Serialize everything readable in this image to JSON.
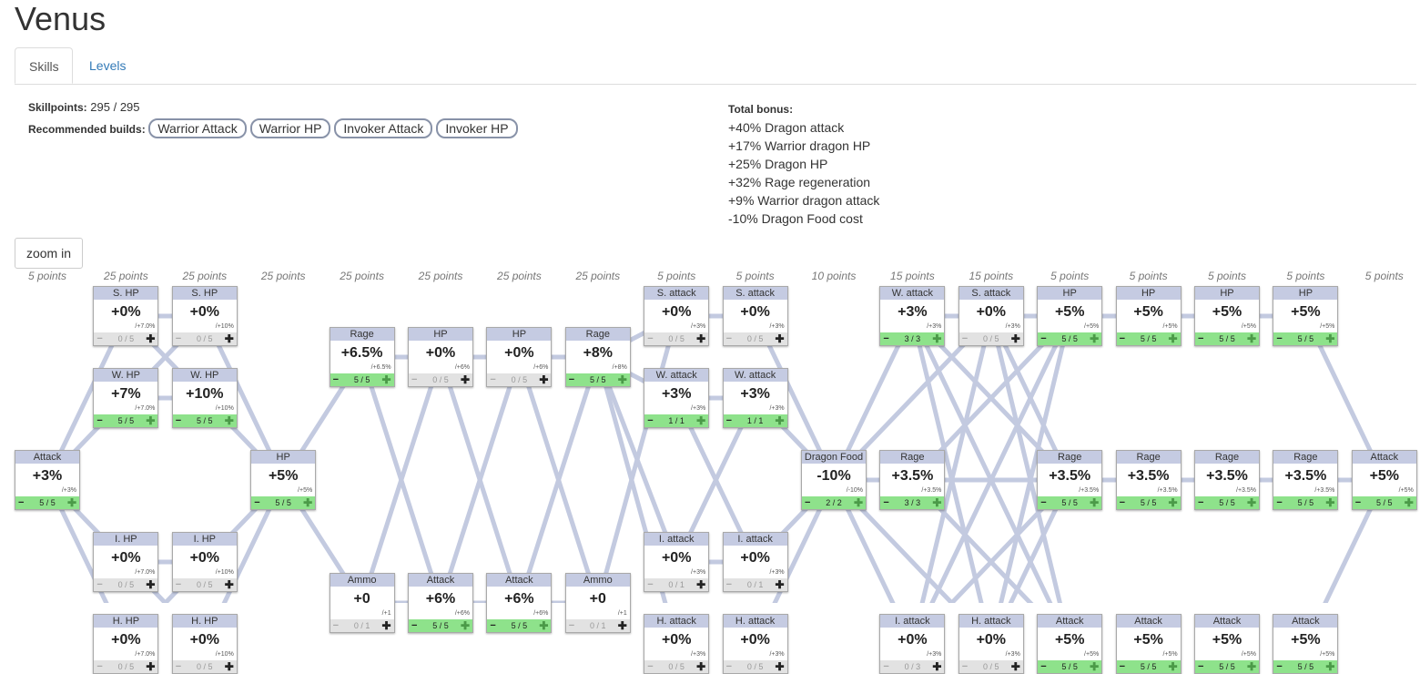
{
  "title": "Venus",
  "tabs": [
    {
      "label": "Skills"
    },
    {
      "label": "Levels"
    }
  ],
  "skillpoints": {
    "label": "Skillpoints:",
    "value": "295 / 295"
  },
  "builds": {
    "label": "Recommended builds:",
    "items": [
      "Warrior Attack",
      "Warrior HP",
      "Invoker Attack",
      "Invoker HP"
    ]
  },
  "total_bonus": {
    "label": "Total bonus:",
    "lines": [
      "+40% Dragon attack",
      "+17% Warrior dragon HP",
      "+25% Dragon HP",
      "+32% Rage regeneration",
      "+9% Warrior dragon attack",
      "-10% Dragon Food cost"
    ]
  },
  "zoom_label": "zoom in",
  "columns": [
    "5 points",
    "25 points",
    "25 points",
    "25 points",
    "25 points",
    "25 points",
    "25 points",
    "25 points",
    "5 points",
    "5 points",
    "10 points",
    "15 points",
    "15 points",
    "5 points",
    "5 points",
    "5 points",
    "5 points",
    "5 points"
  ],
  "nodes": [
    {
      "id": "c0r2",
      "col": 0,
      "row": 2,
      "name": "Attack",
      "value": "+3%",
      "step": "/+3%",
      "level": "5 / 5",
      "active": true
    },
    {
      "id": "c1r0",
      "col": 1,
      "row": 0,
      "name": "S. HP",
      "value": "+0%",
      "step": "/+7.0%",
      "level": "0 / 5",
      "active": false
    },
    {
      "id": "c1r1",
      "col": 1,
      "row": 1,
      "name": "W. HP",
      "value": "+7%",
      "step": "/+7.0%",
      "level": "5 / 5",
      "active": true
    },
    {
      "id": "c1r3",
      "col": 1,
      "row": 3,
      "name": "I. HP",
      "value": "+0%",
      "step": "/+7.0%",
      "level": "0 / 5",
      "active": false
    },
    {
      "id": "c1r4",
      "col": 1,
      "row": 4,
      "name": "H. HP",
      "value": "+0%",
      "step": "/+7.0%",
      "level": "0 / 5",
      "active": false
    },
    {
      "id": "c2r0",
      "col": 2,
      "row": 0,
      "name": "S. HP",
      "value": "+0%",
      "step": "/+10%",
      "level": "0 / 5",
      "active": false
    },
    {
      "id": "c2r1",
      "col": 2,
      "row": 1,
      "name": "W. HP",
      "value": "+10%",
      "step": "/+10%",
      "level": "5 / 5",
      "active": true
    },
    {
      "id": "c2r3",
      "col": 2,
      "row": 3,
      "name": "I. HP",
      "value": "+0%",
      "step": "/+10%",
      "level": "0 / 5",
      "active": false
    },
    {
      "id": "c2r4",
      "col": 2,
      "row": 4,
      "name": "H. HP",
      "value": "+0%",
      "step": "/+10%",
      "level": "0 / 5",
      "active": false
    },
    {
      "id": "c3r2",
      "col": 3,
      "row": 2,
      "name": "HP",
      "value": "+5%",
      "step": "/+5%",
      "level": "5 / 5",
      "active": true
    },
    {
      "id": "c4a",
      "col": 4,
      "row": 0.5,
      "name": "Rage",
      "value": "+6.5%",
      "step": "/+6.5%",
      "level": "5 / 5",
      "active": true
    },
    {
      "id": "c4b",
      "col": 4,
      "row": 3.5,
      "name": "Ammo",
      "value": "+0",
      "step": "/+1",
      "level": "0 / 1",
      "active": false
    },
    {
      "id": "c5a",
      "col": 5,
      "row": 0.5,
      "name": "HP",
      "value": "+0%",
      "step": "/+6%",
      "level": "0 / 5",
      "active": false
    },
    {
      "id": "c5b",
      "col": 5,
      "row": 3.5,
      "name": "Attack",
      "value": "+6%",
      "step": "/+6%",
      "level": "5 / 5",
      "active": true
    },
    {
      "id": "c6a",
      "col": 6,
      "row": 0.5,
      "name": "HP",
      "value": "+0%",
      "step": "/+6%",
      "level": "0 / 5",
      "active": false
    },
    {
      "id": "c6b",
      "col": 6,
      "row": 3.5,
      "name": "Attack",
      "value": "+6%",
      "step": "/+6%",
      "level": "5 / 5",
      "active": true
    },
    {
      "id": "c7a",
      "col": 7,
      "row": 0.5,
      "name": "Rage",
      "value": "+8%",
      "step": "/+8%",
      "level": "5 / 5",
      "active": true
    },
    {
      "id": "c7b",
      "col": 7,
      "row": 3.5,
      "name": "Ammo",
      "value": "+0",
      "step": "/+1",
      "level": "0 / 1",
      "active": false
    },
    {
      "id": "c8r0",
      "col": 8,
      "row": 0,
      "name": "S. attack",
      "value": "+0%",
      "step": "/+3%",
      "level": "0 / 5",
      "active": false
    },
    {
      "id": "c8r1",
      "col": 8,
      "row": 1,
      "name": "W. attack",
      "value": "+3%",
      "step": "/+3%",
      "level": "1 / 1",
      "active": true
    },
    {
      "id": "c8r3",
      "col": 8,
      "row": 3,
      "name": "I. attack",
      "value": "+0%",
      "step": "/+3%",
      "level": "0 / 1",
      "active": false
    },
    {
      "id": "c8r4",
      "col": 8,
      "row": 4,
      "name": "H. attack",
      "value": "+0%",
      "step": "/+3%",
      "level": "0 / 5",
      "active": false
    },
    {
      "id": "c9r0",
      "col": 9,
      "row": 0,
      "name": "S. attack",
      "value": "+0%",
      "step": "/+3%",
      "level": "0 / 5",
      "active": false
    },
    {
      "id": "c9r1",
      "col": 9,
      "row": 1,
      "name": "W. attack",
      "value": "+3%",
      "step": "/+3%",
      "level": "1 / 1",
      "active": true
    },
    {
      "id": "c9r3",
      "col": 9,
      "row": 3,
      "name": "I. attack",
      "value": "+0%",
      "step": "/+3%",
      "level": "0 / 1",
      "active": false
    },
    {
      "id": "c9r4",
      "col": 9,
      "row": 4,
      "name": "H. attack",
      "value": "+0%",
      "step": "/+3%",
      "level": "0 / 5",
      "active": false
    },
    {
      "id": "c10r2",
      "col": 10,
      "row": 2,
      "name": "Dragon Food",
      "value": "-10%",
      "step": "/-10%",
      "level": "2 / 2",
      "active": true
    },
    {
      "id": "c11r0",
      "col": 11,
      "row": 0,
      "name": "W. attack",
      "value": "+3%",
      "step": "/+3%",
      "level": "3 / 3",
      "active": true
    },
    {
      "id": "c11r2",
      "col": 11,
      "row": 2,
      "name": "Rage",
      "value": "+3.5%",
      "step": "/+3.5%",
      "level": "3 / 3",
      "active": true
    },
    {
      "id": "c11r4",
      "col": 11,
      "row": 4,
      "name": "I. attack",
      "value": "+0%",
      "step": "/+3%",
      "level": "0 / 3",
      "active": false
    },
    {
      "id": "c12r0",
      "col": 12,
      "row": 0,
      "name": "S. attack",
      "value": "+0%",
      "step": "/+3%",
      "level": "0 / 5",
      "active": false
    },
    {
      "id": "c12r4",
      "col": 12,
      "row": 4,
      "name": "H. attack",
      "value": "+0%",
      "step": "/+3%",
      "level": "0 / 5",
      "active": false
    },
    {
      "id": "c13r0",
      "col": 13,
      "row": 0,
      "name": "HP",
      "value": "+5%",
      "step": "/+5%",
      "level": "5 / 5",
      "active": true
    },
    {
      "id": "c13r2",
      "col": 13,
      "row": 2,
      "name": "Rage",
      "value": "+3.5%",
      "step": "/+3.5%",
      "level": "5 / 5",
      "active": true
    },
    {
      "id": "c13r4",
      "col": 13,
      "row": 4,
      "name": "Attack",
      "value": "+5%",
      "step": "/+5%",
      "level": "5 / 5",
      "active": true
    },
    {
      "id": "c14r0",
      "col": 14,
      "row": 0,
      "name": "HP",
      "value": "+5%",
      "step": "/+5%",
      "level": "5 / 5",
      "active": true
    },
    {
      "id": "c14r2",
      "col": 14,
      "row": 2,
      "name": "Rage",
      "value": "+3.5%",
      "step": "/+3.5%",
      "level": "5 / 5",
      "active": true
    },
    {
      "id": "c14r4",
      "col": 14,
      "row": 4,
      "name": "Attack",
      "value": "+5%",
      "step": "/+5%",
      "level": "5 / 5",
      "active": true
    },
    {
      "id": "c15r0",
      "col": 15,
      "row": 0,
      "name": "HP",
      "value": "+5%",
      "step": "/+5%",
      "level": "5 / 5",
      "active": true
    },
    {
      "id": "c15r2",
      "col": 15,
      "row": 2,
      "name": "Rage",
      "value": "+3.5%",
      "step": "/+3.5%",
      "level": "5 / 5",
      "active": true
    },
    {
      "id": "c15r4",
      "col": 15,
      "row": 4,
      "name": "Attack",
      "value": "+5%",
      "step": "/+5%",
      "level": "5 / 5",
      "active": true
    },
    {
      "id": "c16r0",
      "col": 16,
      "row": 0,
      "name": "HP",
      "value": "+5%",
      "step": "/+5%",
      "level": "5 / 5",
      "active": true
    },
    {
      "id": "c16r2",
      "col": 16,
      "row": 2,
      "name": "Rage",
      "value": "+3.5%",
      "step": "/+3.5%",
      "level": "5 / 5",
      "active": true
    },
    {
      "id": "c16r4",
      "col": 16,
      "row": 4,
      "name": "Attack",
      "value": "+5%",
      "step": "/+5%",
      "level": "5 / 5",
      "active": true
    },
    {
      "id": "c17r2",
      "col": 17,
      "row": 2,
      "name": "Attack",
      "value": "+5%",
      "step": "/+5%",
      "level": "5 / 5",
      "active": true
    }
  ],
  "edges": [
    [
      "c0r2",
      "c1r0"
    ],
    [
      "c0r2",
      "c1r1"
    ],
    [
      "c0r2",
      "c1r3"
    ],
    [
      "c0r2",
      "c1r4"
    ],
    [
      "c1r0",
      "c2r0"
    ],
    [
      "c1r1",
      "c2r1"
    ],
    [
      "c1r3",
      "c2r3"
    ],
    [
      "c1r4",
      "c2r4"
    ],
    [
      "c1r0",
      "c2r1"
    ],
    [
      "c1r1",
      "c2r0"
    ],
    [
      "c1r3",
      "c2r4"
    ],
    [
      "c1r4",
      "c2r3"
    ],
    [
      "c2r0",
      "c3r2"
    ],
    [
      "c2r1",
      "c3r2"
    ],
    [
      "c2r3",
      "c3r2"
    ],
    [
      "c2r4",
      "c3r2"
    ],
    [
      "c3r2",
      "c4a"
    ],
    [
      "c3r2",
      "c4b"
    ],
    [
      "c4a",
      "c5a"
    ],
    [
      "c4a",
      "c5b"
    ],
    [
      "c4b",
      "c5a"
    ],
    [
      "c4b",
      "c5b"
    ],
    [
      "c5a",
      "c6a"
    ],
    [
      "c5a",
      "c6b"
    ],
    [
      "c5b",
      "c6a"
    ],
    [
      "c5b",
      "c6b"
    ],
    [
      "c6a",
      "c7a"
    ],
    [
      "c6a",
      "c7b"
    ],
    [
      "c6b",
      "c7a"
    ],
    [
      "c6b",
      "c7b"
    ],
    [
      "c7a",
      "c8r0"
    ],
    [
      "c7a",
      "c8r1"
    ],
    [
      "c7a",
      "c8r3"
    ],
    [
      "c7a",
      "c8r4"
    ],
    [
      "c7b",
      "c8r0"
    ],
    [
      "c7b",
      "c8r4"
    ],
    [
      "c8r0",
      "c9r0"
    ],
    [
      "c8r1",
      "c9r1"
    ],
    [
      "c8r3",
      "c9r3"
    ],
    [
      "c8r4",
      "c9r4"
    ],
    [
      "c8r1",
      "c9r3"
    ],
    [
      "c8r3",
      "c9r1"
    ],
    [
      "c9r0",
      "c10r2"
    ],
    [
      "c9r1",
      "c10r2"
    ],
    [
      "c9r3",
      "c10r2"
    ],
    [
      "c9r4",
      "c10r2"
    ],
    [
      "c10r2",
      "c11r0"
    ],
    [
      "c10r2",
      "c11r2"
    ],
    [
      "c10r2",
      "c11r4"
    ],
    [
      "c10r2",
      "c12r0"
    ],
    [
      "c10r2",
      "c12r4"
    ],
    [
      "c11r0",
      "c12r0"
    ],
    [
      "c11r4",
      "c12r4"
    ],
    [
      "c11r0",
      "c12r4"
    ],
    [
      "c11r4",
      "c12r0"
    ],
    [
      "c11r2",
      "c13r2"
    ],
    [
      "c11r2",
      "c13r0"
    ],
    [
      "c11r2",
      "c13r4"
    ],
    [
      "c11r0",
      "c13r2"
    ],
    [
      "c11r4",
      "c13r2"
    ],
    [
      "c11r0",
      "c13r4"
    ],
    [
      "c11r4",
      "c13r0"
    ],
    [
      "c12r0",
      "c13r0"
    ],
    [
      "c12r0",
      "c13r2"
    ],
    [
      "c12r0",
      "c13r4"
    ],
    [
      "c12r4",
      "c13r4"
    ],
    [
      "c12r4",
      "c13r2"
    ],
    [
      "c12r4",
      "c13r0"
    ],
    [
      "c13r0",
      "c14r0"
    ],
    [
      "c14r0",
      "c15r0"
    ],
    [
      "c15r0",
      "c16r0"
    ],
    [
      "c13r2",
      "c14r2"
    ],
    [
      "c14r2",
      "c15r2"
    ],
    [
      "c15r2",
      "c16r2"
    ],
    [
      "c13r4",
      "c14r4"
    ],
    [
      "c14r4",
      "c15r4"
    ],
    [
      "c15r4",
      "c16r4"
    ],
    [
      "c16r0",
      "c17r2"
    ],
    [
      "c16r2",
      "c17r2"
    ],
    [
      "c16r4",
      "c17r2"
    ]
  ],
  "colors": {
    "edge": "#c3cae0",
    "header": "#c5cbe2",
    "active_footer": "#8ee28b",
    "inactive_footer": "#e2e2e2"
  }
}
